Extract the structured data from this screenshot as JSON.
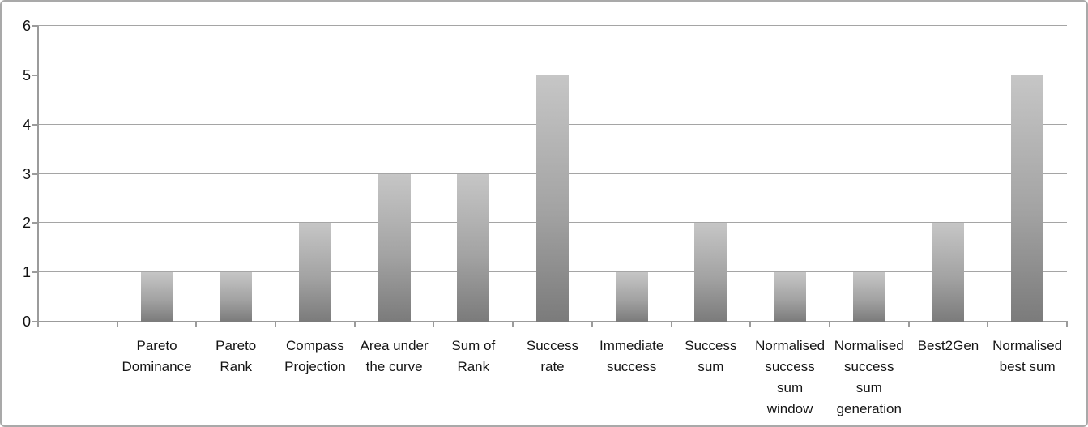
{
  "chart_data": {
    "type": "bar",
    "title": "",
    "xlabel": "",
    "ylabel": "",
    "categories": [
      "Pareto\nDominance",
      "Pareto\nRank",
      "Compass\nProjection",
      "Area under\nthe curve",
      "Sum of\nRank",
      "Success\nrate",
      "Immediate\nsuccess",
      "Success\nsum",
      "Normalised\nsuccess\nsum\nwindow",
      "Normalised\nsuccess\nsum\ngeneration",
      "Best2Gen",
      "Normalised\nbest sum"
    ],
    "values": [
      1,
      1,
      2,
      3,
      3,
      5,
      1,
      2,
      1,
      1,
      2,
      5
    ],
    "ylim": [
      0,
      6
    ],
    "yticks": [
      0,
      1,
      2,
      3,
      4,
      5,
      6
    ],
    "grid": "horizontal",
    "legend": "none",
    "colors": {
      "bar_gradient_top": "#c6c6c6",
      "bar_gradient_bottom": "#7b7b7b",
      "gridline": "#a5a5a5",
      "axis": "#9b9b9b",
      "frame_border": "#a9a9a9",
      "background": "#ffffff",
      "text": "#151515"
    }
  }
}
